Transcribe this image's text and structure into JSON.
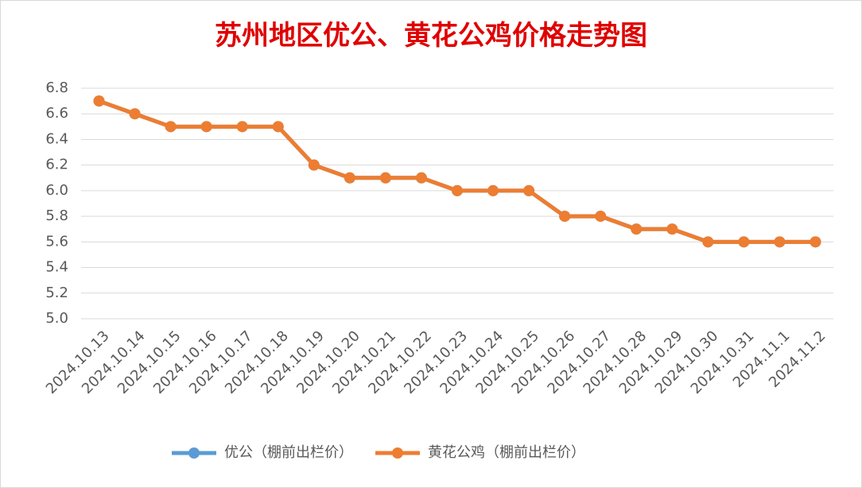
{
  "chart_data": {
    "type": "line",
    "title": "苏州地区优公、黄花公鸡价格走势图",
    "categories": [
      "2024.10.13",
      "2024.10.14",
      "2024.10.15",
      "2024.10.16",
      "2024.10.17",
      "2024.10.18",
      "2024.10.19",
      "2024.10.20",
      "2024.10.21",
      "2024.10.22",
      "2024.10.23",
      "2024.10.24",
      "2024.10.25",
      "2024.10.26",
      "2024.10.27",
      "2024.10.28",
      "2024.10.29",
      "2024.10.30",
      "2024.10.31",
      "2024.11.1",
      "2024.11.2"
    ],
    "series": [
      {
        "name": "优公（棚前出栏价）",
        "color": "#5b9bd5",
        "values": [
          6.7,
          6.6,
          6.5,
          6.5,
          6.5,
          6.5,
          6.2,
          6.1,
          6.1,
          6.1,
          6.0,
          6.0,
          6.0,
          5.8,
          5.8,
          5.7,
          5.7,
          5.6,
          5.6,
          5.6,
          5.6
        ]
      },
      {
        "name": "黄花公鸡（棚前出栏价）",
        "color": "#ed7d31",
        "values": [
          6.7,
          6.6,
          6.5,
          6.5,
          6.5,
          6.5,
          6.2,
          6.1,
          6.1,
          6.1,
          6.0,
          6.0,
          6.0,
          5.8,
          5.8,
          5.7,
          5.7,
          5.6,
          5.6,
          5.6,
          5.6
        ]
      }
    ],
    "ylim": [
      5.0,
      6.8
    ],
    "yticks": [
      {
        "value": 5.0,
        "label": "5.0"
      },
      5.2,
      5.4,
      5.6,
      5.8,
      {
        "value": 6.0,
        "label": "6.0"
      },
      6.2,
      6.4,
      6.6,
      6.8
    ],
    "grid": true,
    "legend": "bottom"
  }
}
